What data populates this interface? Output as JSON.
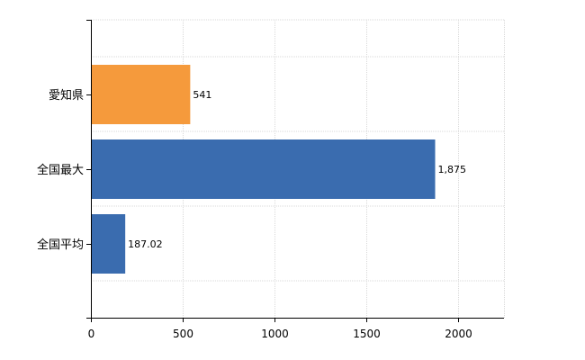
{
  "chart_data": {
    "type": "bar",
    "orientation": "horizontal",
    "categories": [
      "愛知県",
      "全国最大",
      "全国平均"
    ],
    "values": [
      541,
      1875,
      187.02
    ],
    "value_labels": [
      "541",
      "1,875",
      "187.02"
    ],
    "colors": [
      "#F59A3C",
      "#3A6CAF",
      "#3A6CAF"
    ],
    "xlim": [
      0,
      2250
    ],
    "xticks": [
      0,
      500,
      1000,
      1500,
      2000
    ],
    "xtick_labels": [
      "0",
      "500",
      "1000",
      "1500",
      "2000"
    ],
    "grid": true,
    "title": "",
    "xlabel": "",
    "ylabel": ""
  }
}
